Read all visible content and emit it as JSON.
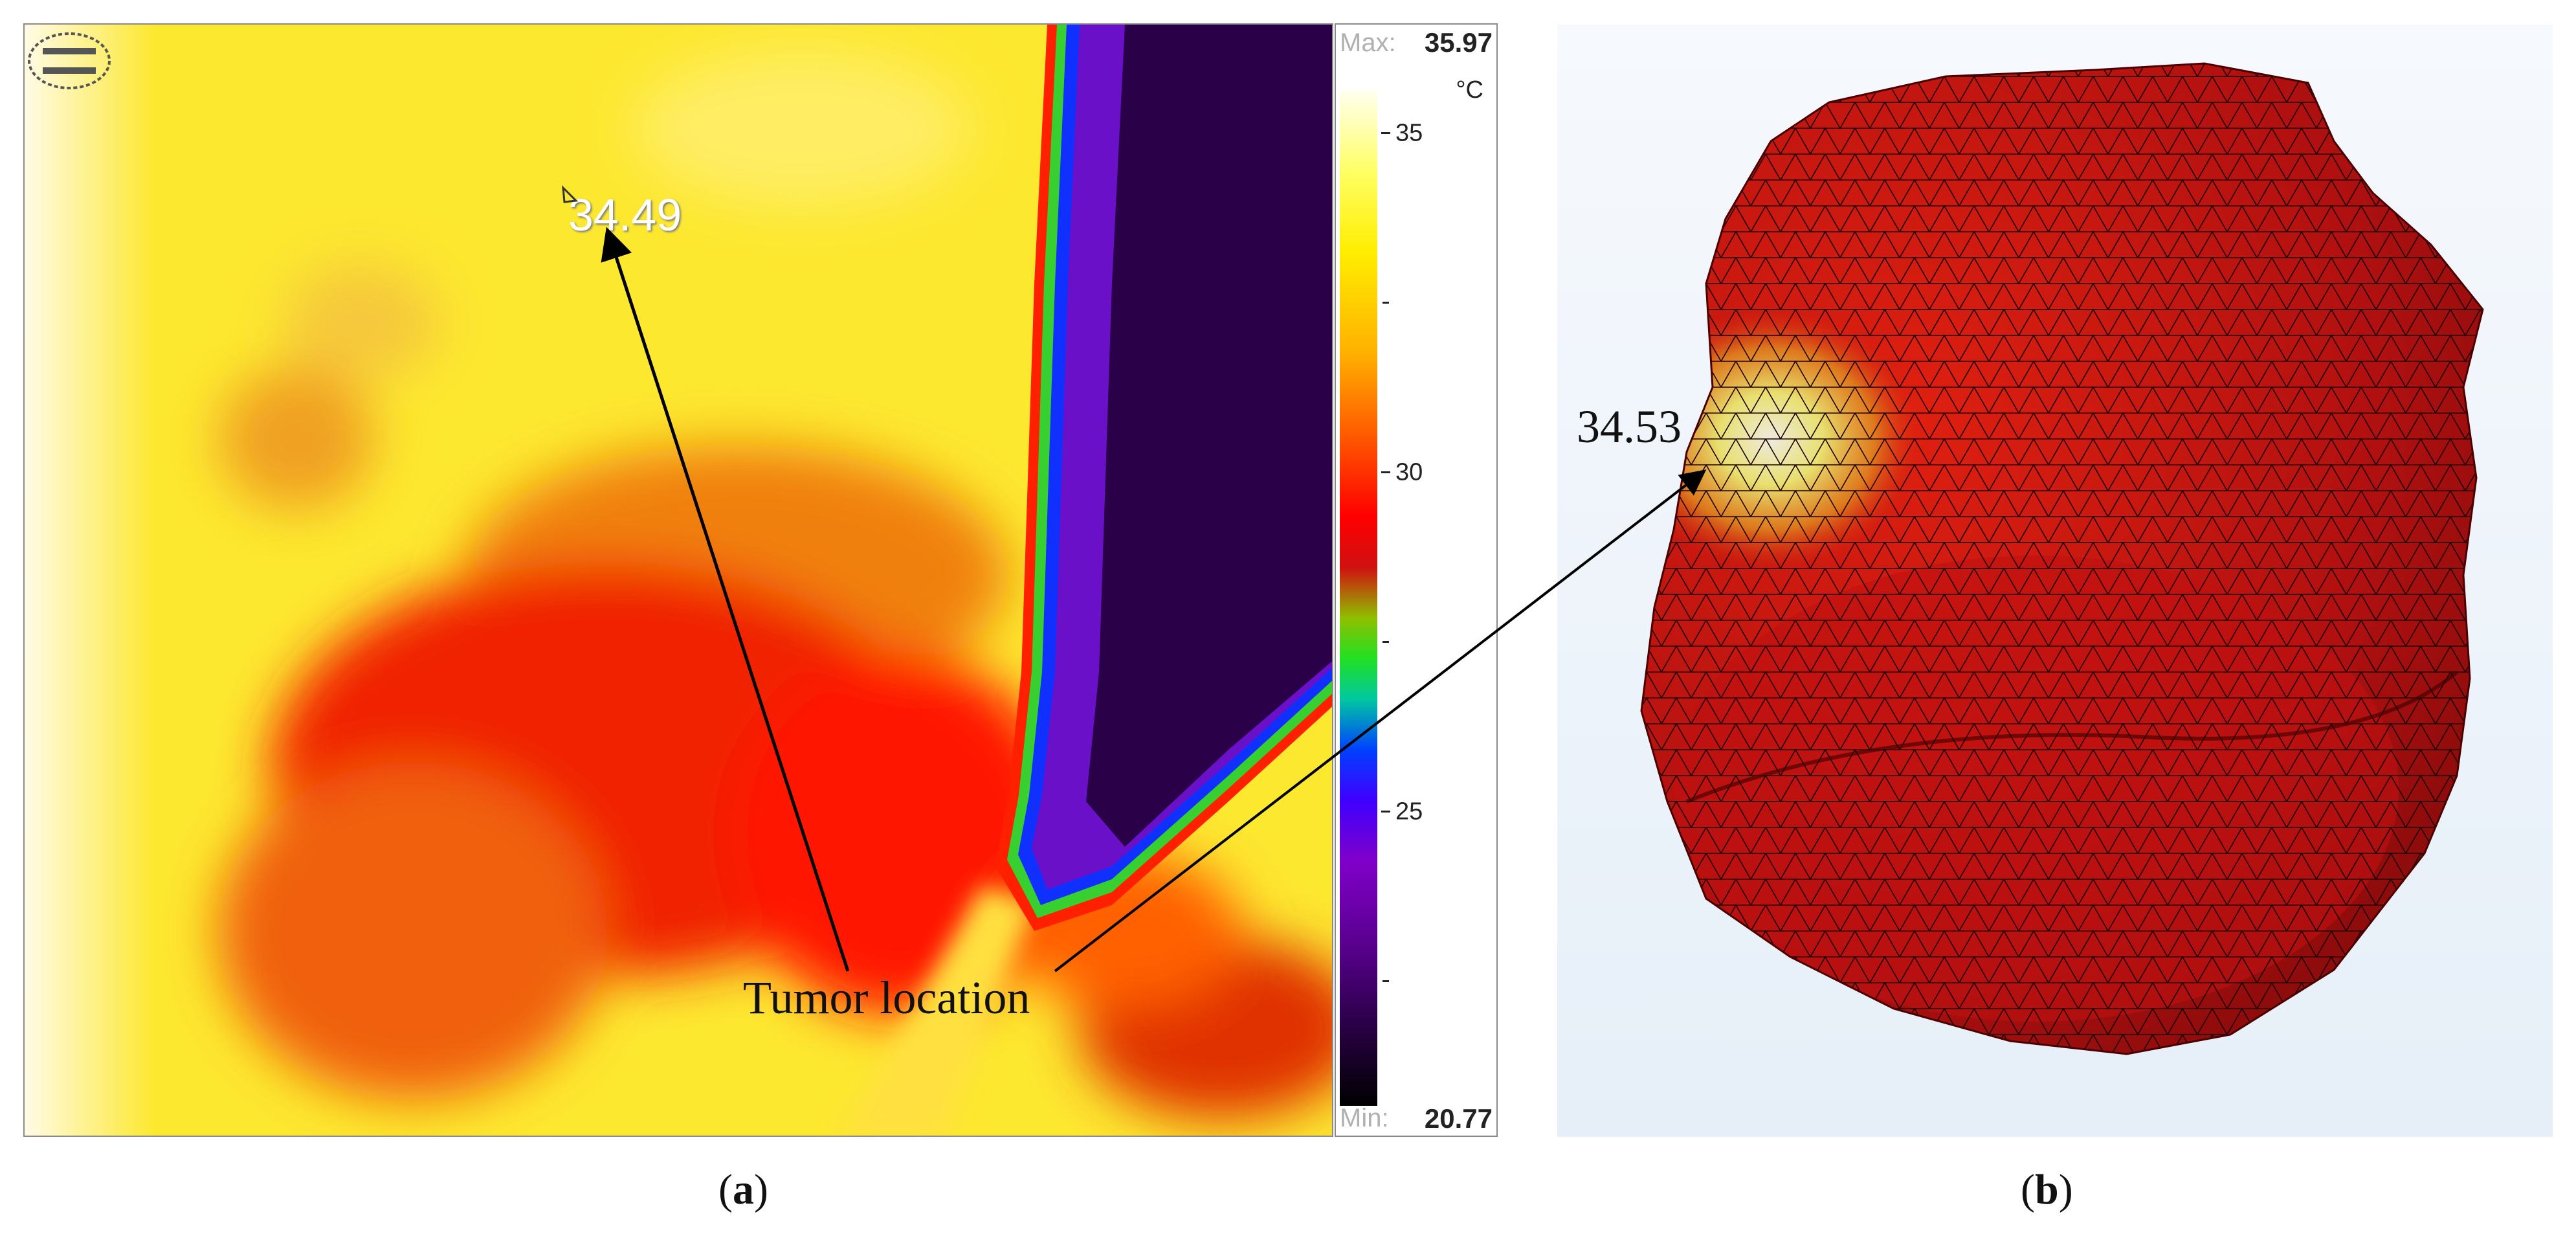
{
  "panel_a": {
    "measurement_value": "34.49",
    "scale": {
      "max_label": "Max:",
      "max_value": "35.97",
      "min_label": "Min:",
      "min_value": "20.77",
      "unit": "°C",
      "ticks": [
        "35",
        "30",
        "25"
      ]
    },
    "caption_letter": "a"
  },
  "panel_b": {
    "measurement_value": "34.53",
    "caption_letter": "b"
  },
  "annotation": {
    "label": "Tumor location"
  },
  "colors": {
    "mesh_red": "#c01010",
    "hotspot": "#e8e0a0",
    "cold_region": "#2a0048"
  }
}
